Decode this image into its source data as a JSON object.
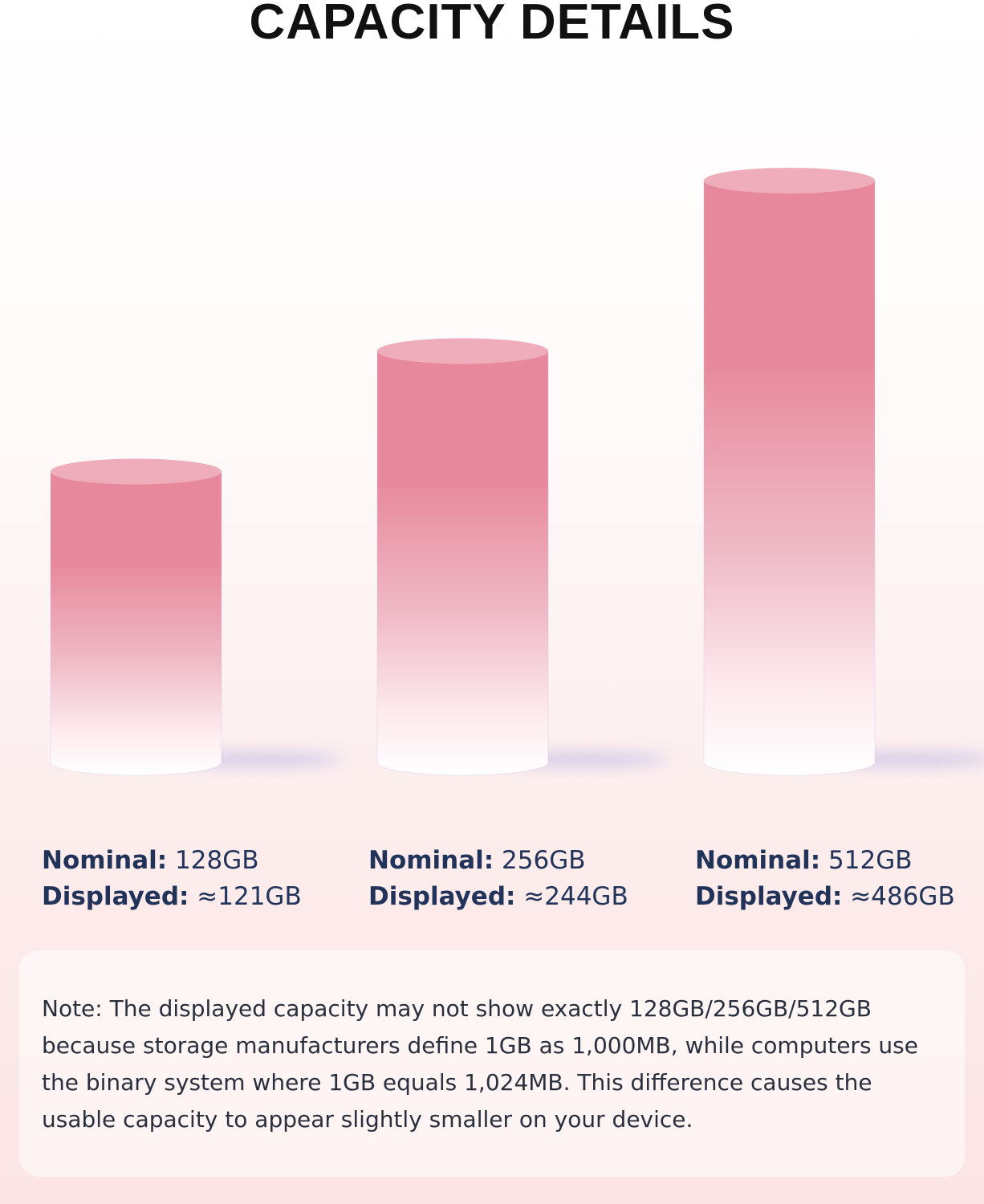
{
  "chart_data": {
    "type": "bar",
    "title": "CAPACITY DETAILS",
    "categories": [
      "128GB",
      "256GB",
      "512GB"
    ],
    "series": [
      {
        "values": [
          128,
          256,
          512
        ]
      }
    ],
    "labels": [
      {
        "nominal_label": "Nominal:",
        "nominal_value": "128GB",
        "displayed_label": "Displayed:",
        "displayed_value": "≈121GB"
      },
      {
        "nominal_label": "Nominal:",
        "nominal_value": "256GB",
        "displayed_label": "Displayed:",
        "displayed_value": "≈244GB"
      },
      {
        "nominal_label": "Nominal:",
        "nominal_value": "512GB",
        "displayed_label": "Displayed:",
        "displayed_value": "≈486GB"
      }
    ],
    "ylim": [
      0,
      512
    ],
    "grid": false,
    "colors": {
      "bar_top": "#e8889c",
      "bar_bottom": "#ffffff",
      "cap": "#efadbb",
      "shadow": "#b7b3e3",
      "label": "#22335a"
    }
  },
  "note": "Note: The displayed capacity may not show exactly 128GB/256GB/512GB because storage manufacturers define 1GB as 1,000MB, while computers use the binary system where 1GB equals 1,024MB. This difference causes the usable capacity to appear slightly smaller on your device."
}
